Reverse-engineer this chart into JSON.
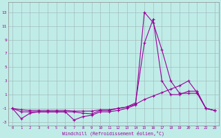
{
  "xlabel": "Windchill (Refroidissement éolien,°C)",
  "bg_color": "#c0ece8",
  "line_color": "#990099",
  "grid_color": "#a0b8b8",
  "xlim": [
    -0.5,
    23.5
  ],
  "ylim": [
    -3.5,
    14.5
  ],
  "xticks": [
    0,
    1,
    2,
    3,
    4,
    5,
    6,
    7,
    8,
    9,
    10,
    11,
    12,
    13,
    14,
    15,
    16,
    17,
    18,
    19,
    20,
    21,
    22,
    23
  ],
  "yticks": [
    -3,
    -1,
    1,
    3,
    5,
    7,
    9,
    11,
    13
  ],
  "line1_x": [
    0,
    1,
    2,
    3,
    4,
    5,
    6,
    7,
    8,
    9,
    10,
    11,
    12,
    13,
    14,
    15,
    16,
    17,
    18,
    19,
    20,
    21,
    22,
    23
  ],
  "line1_y": [
    -1.0,
    -2.5,
    -1.7,
    -1.5,
    -1.5,
    -1.5,
    -1.5,
    -2.7,
    -2.2,
    -2.0,
    -1.5,
    -1.5,
    -1.3,
    -1.0,
    -0.5,
    13.0,
    11.5,
    7.5,
    3.0,
    1.2,
    1.2,
    1.2,
    -1.0,
    -1.3
  ],
  "line2_x": [
    0,
    1,
    2,
    3,
    4,
    5,
    6,
    7,
    8,
    9,
    10,
    11,
    12,
    13,
    14,
    15,
    16,
    17,
    18,
    19,
    20,
    21,
    22,
    23
  ],
  "line2_y": [
    -1.0,
    -1.5,
    -1.5,
    -1.5,
    -1.5,
    -1.5,
    -1.5,
    -1.5,
    -1.7,
    -1.8,
    -1.3,
    -1.3,
    -1.0,
    -0.8,
    -0.2,
    8.5,
    12.0,
    3.0,
    1.0,
    1.0,
    1.5,
    1.5,
    -1.0,
    -1.3
  ],
  "line3_x": [
    0,
    1,
    2,
    3,
    4,
    5,
    6,
    7,
    8,
    9,
    10,
    11,
    12,
    13,
    14,
    15,
    16,
    17,
    18,
    19,
    20,
    21,
    22,
    23
  ],
  "line3_y": [
    -1.0,
    -1.2,
    -1.3,
    -1.3,
    -1.3,
    -1.3,
    -1.3,
    -1.4,
    -1.4,
    -1.4,
    -1.2,
    -1.2,
    -1.0,
    -0.8,
    -0.4,
    0.3,
    0.8,
    1.3,
    1.8,
    2.3,
    3.0,
    1.3,
    -1.0,
    -1.3
  ]
}
